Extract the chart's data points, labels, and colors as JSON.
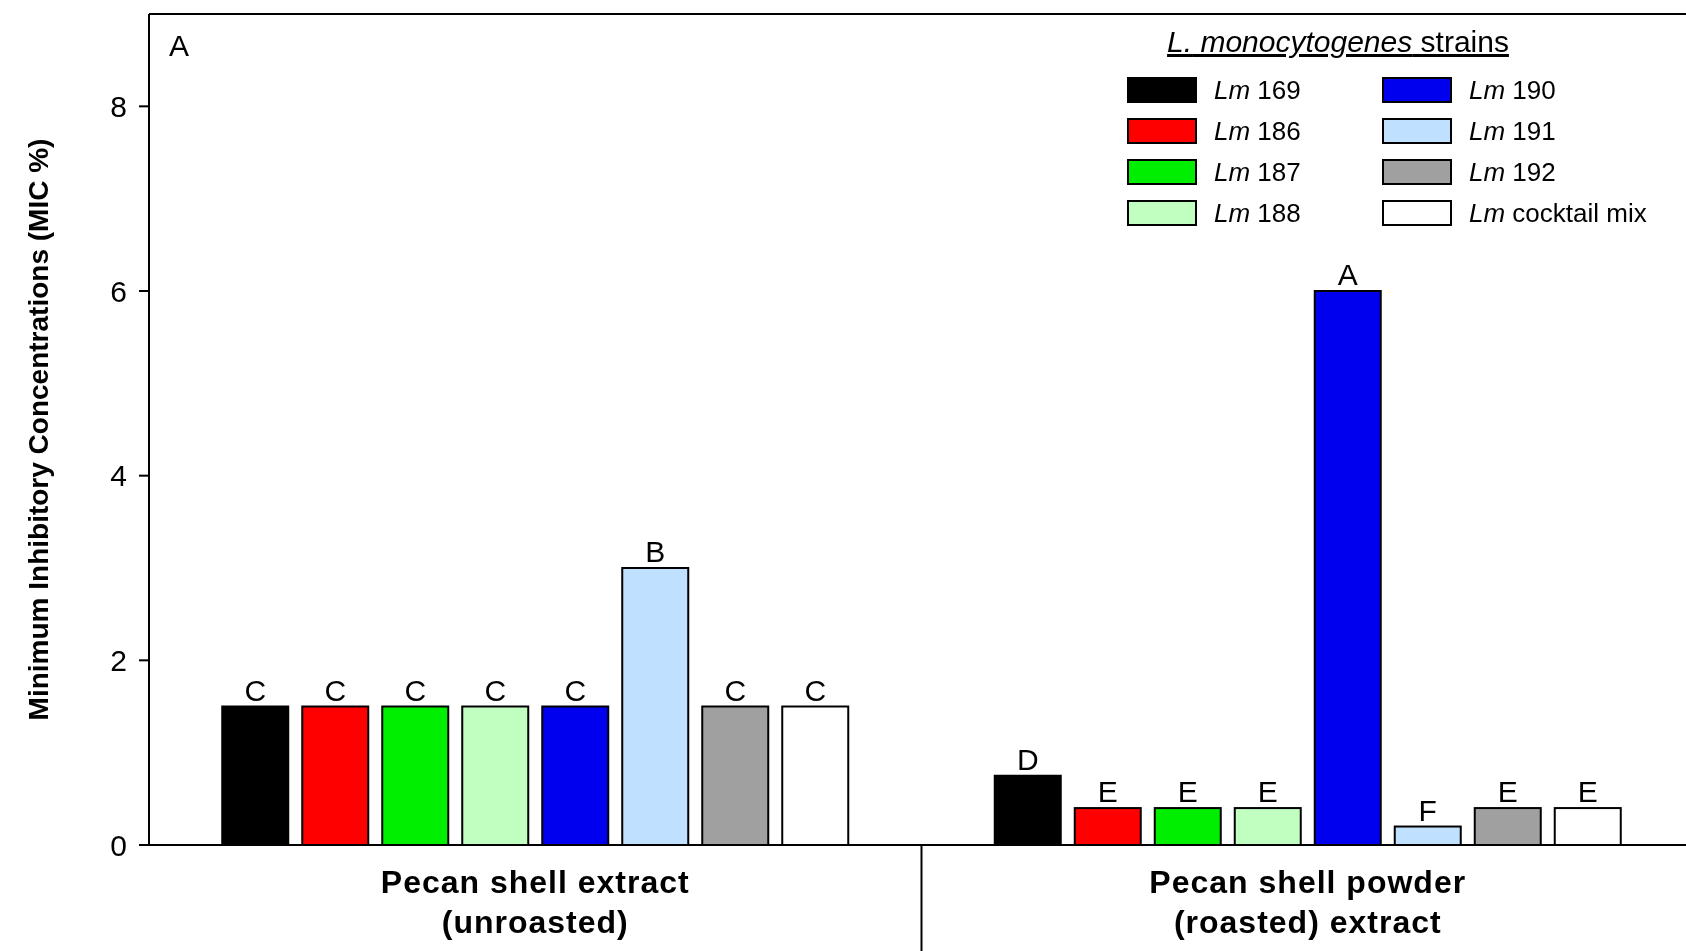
{
  "chart_data": {
    "type": "bar",
    "ylabel": "Minimum Inhibitory Concentrations (MIC %)",
    "legend_title": "L. monocytogenes strains",
    "legend": "top right",
    "categories": [
      "Pecan shell extract\n(unroasted)",
      "Pecan shell powder\n(roasted) extract"
    ],
    "ylim": [
      0,
      9
    ],
    "yticks": [
      0,
      2,
      4,
      6,
      8
    ],
    "annotations": [
      "A"
    ],
    "series": [
      {
        "name": "Lm 169",
        "color": "#000000",
        "values": [
          1.5,
          0.75
        ],
        "value_labels": [
          "C",
          "D"
        ]
      },
      {
        "name": "Lm 186",
        "color": "#ff0000",
        "values": [
          1.5,
          0.4
        ],
        "value_labels": [
          "C",
          "E"
        ]
      },
      {
        "name": "Lm 187",
        "color": "#00ee00",
        "values": [
          1.5,
          0.4
        ],
        "value_labels": [
          "C",
          "E"
        ]
      },
      {
        "name": "Lm 188",
        "color": "#c0ffc0",
        "values": [
          1.5,
          0.4
        ],
        "value_labels": [
          "C",
          "E"
        ]
      },
      {
        "name": "Lm 190",
        "color": "#0000ee",
        "values": [
          1.5,
          6
        ],
        "value_labels": [
          "C",
          "A"
        ]
      },
      {
        "name": "Lm 191",
        "color": "#c0e0ff",
        "values": [
          3,
          0.2
        ],
        "value_labels": [
          "B",
          "F"
        ]
      },
      {
        "name": "Lm 192",
        "color": "#a0a0a0",
        "values": [
          1.5,
          0.4
        ],
        "value_labels": [
          "C",
          "E"
        ]
      },
      {
        "name": "Lm cocktail mix",
        "color": "#ffffff",
        "values": [
          1.5,
          0.4
        ],
        "value_labels": [
          "C",
          "E"
        ]
      }
    ]
  }
}
